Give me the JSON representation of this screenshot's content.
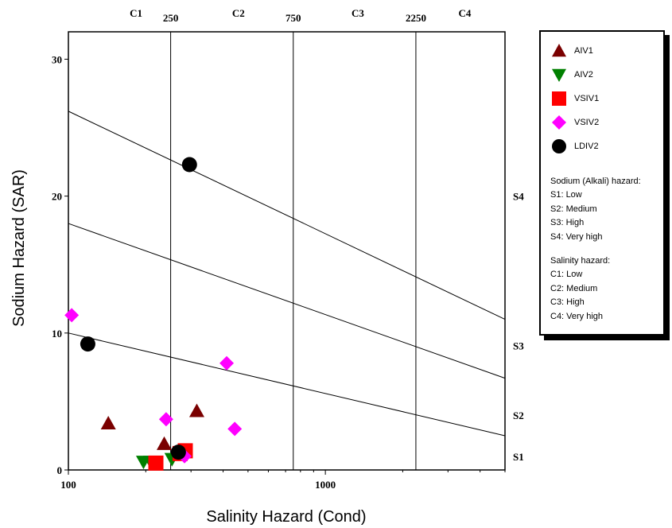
{
  "chart_data": {
    "type": "scatter",
    "xlabel": "Salinity Hazard (Cond)",
    "ylabel": "Sodium Hazard (SAR)",
    "x_scale": "log",
    "xlim": [
      100,
      5000
    ],
    "ylim": [
      0,
      32
    ],
    "x_ticks": [
      "100",
      "1000"
    ],
    "y_ticks": [
      "0",
      "10",
      "20",
      "30"
    ],
    "top_ticks": [
      "250",
      "750",
      "2250"
    ],
    "salinity_classes": [
      "C1",
      "C2",
      "C3",
      "C4"
    ],
    "sodium_classes": [
      "S1",
      "S2",
      "S3",
      "S4"
    ],
    "boundaries": {
      "vertical_cond": [
        250,
        750,
        2250
      ],
      "lines": [
        {
          "class": "S1/S2",
          "from": [
            100,
            10
          ],
          "to": [
            5000,
            2.5
          ]
        },
        {
          "class": "S2/S3",
          "from": [
            100,
            18
          ],
          "to": [
            5000,
            6.7
          ]
        },
        {
          "class": "S3/S4",
          "from": [
            100,
            26.2
          ],
          "to": [
            5000,
            11
          ]
        }
      ]
    },
    "series": [
      {
        "name": "AIV1",
        "marker": "triangle-up",
        "color": "#7a0000",
        "points": [
          [
            143,
            3.4
          ],
          [
            236,
            1.9
          ],
          [
            316,
            4.3
          ]
        ]
      },
      {
        "name": "AIV2",
        "marker": "triangle-down",
        "color": "#008000",
        "points": [
          [
            196,
            0.6
          ],
          [
            209,
            0.6
          ],
          [
            253,
            0.8
          ]
        ]
      },
      {
        "name": "VSIV1",
        "marker": "square",
        "color": "#ff0000",
        "points": [
          [
            219,
            0.5
          ],
          [
            272,
            1.2
          ],
          [
            285,
            1.4
          ]
        ]
      },
      {
        "name": "VSIV2",
        "marker": "diamond",
        "color": "#ff00ff",
        "points": [
          [
            103,
            11.3
          ],
          [
            240,
            3.7
          ],
          [
            283,
            1.0
          ],
          [
            413,
            7.8
          ],
          [
            444,
            3.0
          ]
        ]
      },
      {
        "name": "LDIV2",
        "marker": "circle",
        "color": "#000000",
        "points": [
          [
            119,
            9.2
          ],
          [
            296,
            22.3
          ],
          [
            268,
            1.3
          ]
        ]
      }
    ],
    "legend_position": "right",
    "grid": false
  },
  "legend": {
    "sodium_title": "Sodium (Alkali) hazard:",
    "sodium_items": [
      "S1: Low",
      "S2: Medium",
      "S3: High",
      "S4: Very high"
    ],
    "salinity_title": "Salinity hazard:",
    "salinity_items": [
      "C1: Low",
      "C2: Medium",
      "C3: High",
      "C4: Very high"
    ]
  }
}
